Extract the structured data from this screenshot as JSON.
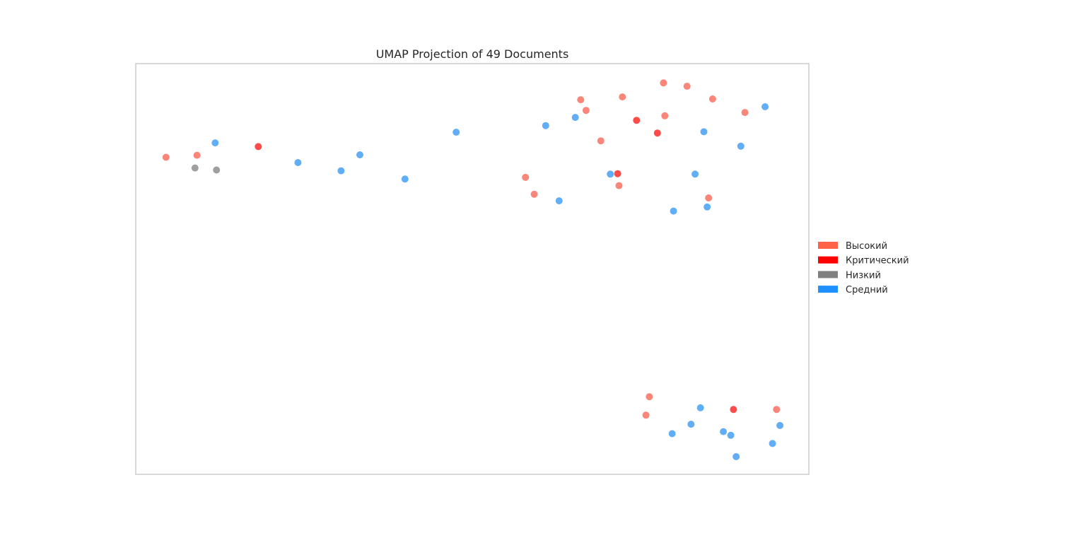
{
  "chart_data": {
    "type": "scatter",
    "title": "UMAP Projection of 49 Documents",
    "xlabel": "",
    "ylabel": "",
    "axes_visible": false,
    "grid": false,
    "legend_position": "right-center outside plot",
    "xlim": [
      0,
      100
    ],
    "ylim": [
      0,
      100
    ],
    "series": [
      {
        "name": "Высокий",
        "color": "#fa8072",
        "points": [
          {
            "x": 4.5,
            "y": 77.2
          },
          {
            "x": 9.1,
            "y": 77.7
          },
          {
            "x": 57.9,
            "y": 72.3
          },
          {
            "x": 59.2,
            "y": 68.2
          },
          {
            "x": 66.1,
            "y": 91.2
          },
          {
            "x": 66.9,
            "y": 88.6
          },
          {
            "x": 69.1,
            "y": 81.2
          },
          {
            "x": 72.3,
            "y": 91.9
          },
          {
            "x": 71.8,
            "y": 70.3
          },
          {
            "x": 78.4,
            "y": 95.3
          },
          {
            "x": 78.6,
            "y": 87.3
          },
          {
            "x": 81.9,
            "y": 94.5
          },
          {
            "x": 85.7,
            "y": 91.4
          },
          {
            "x": 90.5,
            "y": 88.1
          },
          {
            "x": 85.1,
            "y": 67.3
          },
          {
            "x": 76.3,
            "y": 18.9
          },
          {
            "x": 75.8,
            "y": 14.4
          },
          {
            "x": 95.2,
            "y": 15.8
          }
        ]
      },
      {
        "name": "Критический",
        "color": "#ff4040",
        "points": [
          {
            "x": 18.2,
            "y": 79.8
          },
          {
            "x": 74.4,
            "y": 86.2
          },
          {
            "x": 77.5,
            "y": 83.1
          },
          {
            "x": 71.6,
            "y": 73.2
          },
          {
            "x": 88.8,
            "y": 15.8
          }
        ]
      },
      {
        "name": "Низкий",
        "color": "#9a9a9a",
        "points": [
          {
            "x": 8.8,
            "y": 74.6
          },
          {
            "x": 12.0,
            "y": 74.1
          }
        ]
      },
      {
        "name": "Средний",
        "color": "#5aaaf5",
        "points": [
          {
            "x": 11.8,
            "y": 80.7
          },
          {
            "x": 24.1,
            "y": 75.9
          },
          {
            "x": 30.5,
            "y": 73.9
          },
          {
            "x": 33.3,
            "y": 77.8
          },
          {
            "x": 40.0,
            "y": 71.9
          },
          {
            "x": 47.6,
            "y": 83.3
          },
          {
            "x": 60.9,
            "y": 84.9
          },
          {
            "x": 65.3,
            "y": 86.9
          },
          {
            "x": 62.9,
            "y": 66.6
          },
          {
            "x": 70.5,
            "y": 73.1
          },
          {
            "x": 79.9,
            "y": 64.1
          },
          {
            "x": 83.1,
            "y": 73.1
          },
          {
            "x": 84.4,
            "y": 83.4
          },
          {
            "x": 84.9,
            "y": 65.1
          },
          {
            "x": 89.9,
            "y": 79.9
          },
          {
            "x": 93.5,
            "y": 89.5
          },
          {
            "x": 83.9,
            "y": 16.2
          },
          {
            "x": 82.5,
            "y": 12.2
          },
          {
            "x": 79.7,
            "y": 9.9
          },
          {
            "x": 87.3,
            "y": 10.4
          },
          {
            "x": 88.4,
            "y": 9.5
          },
          {
            "x": 94.6,
            "y": 7.5
          },
          {
            "x": 89.2,
            "y": 4.3
          },
          {
            "x": 95.7,
            "y": 11.9
          }
        ]
      }
    ],
    "legend": [
      {
        "label": "Высокий",
        "color": "#ff6347"
      },
      {
        "label": "Критический",
        "color": "#ff0000"
      },
      {
        "label": "Низкий",
        "color": "#808080"
      },
      {
        "label": "Средний",
        "color": "#1e90ff"
      }
    ]
  }
}
